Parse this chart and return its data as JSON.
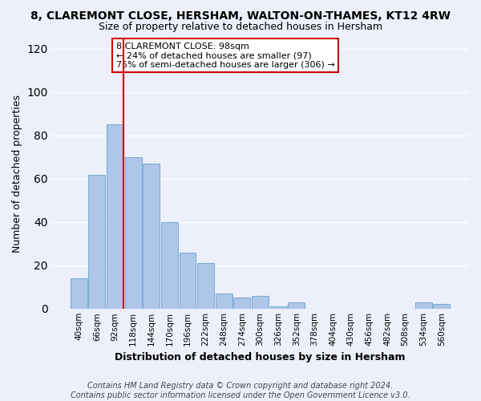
{
  "title": "8, CLAREMONT CLOSE, HERSHAM, WALTON-ON-THAMES, KT12 4RW",
  "subtitle": "Size of property relative to detached houses in Hersham",
  "xlabel": "Distribution of detached houses by size in Hersham",
  "ylabel": "Number of detached properties",
  "categories": [
    "40sqm",
    "66sqm",
    "92sqm",
    "118sqm",
    "144sqm",
    "170sqm",
    "196sqm",
    "222sqm",
    "248sqm",
    "274sqm",
    "300sqm",
    "326sqm",
    "352sqm",
    "378sqm",
    "404sqm",
    "430sqm",
    "456sqm",
    "482sqm",
    "508sqm",
    "534sqm",
    "560sqm"
  ],
  "values": [
    14,
    62,
    85,
    70,
    67,
    40,
    26,
    21,
    7,
    5,
    6,
    1,
    3,
    0,
    0,
    0,
    0,
    0,
    0,
    3,
    2
  ],
  "bar_color": "#aec6e8",
  "bar_edge_color": "#7bafd4",
  "vline_x_index": 2,
  "vline_color": "#cc0000",
  "annotation_text": "8 CLAREMONT CLOSE: 98sqm\n← 24% of detached houses are smaller (97)\n75% of semi-detached houses are larger (306) →",
  "annotation_box_color": "#ffffff",
  "annotation_box_edge_color": "#cc0000",
  "ylim": [
    0,
    125
  ],
  "yticks": [
    0,
    20,
    40,
    60,
    80,
    100,
    120
  ],
  "footer": "Contains HM Land Registry data © Crown copyright and database right 2024.\nContains public sector information licensed under the Open Government Licence v3.0.",
  "background_color": "#edf0fb",
  "grid_color": "#ffffff",
  "title_fontsize": 10,
  "subtitle_fontsize": 9,
  "axis_label_fontsize": 9,
  "tick_fontsize": 7.5,
  "footer_fontsize": 7,
  "annotation_fontsize": 8
}
